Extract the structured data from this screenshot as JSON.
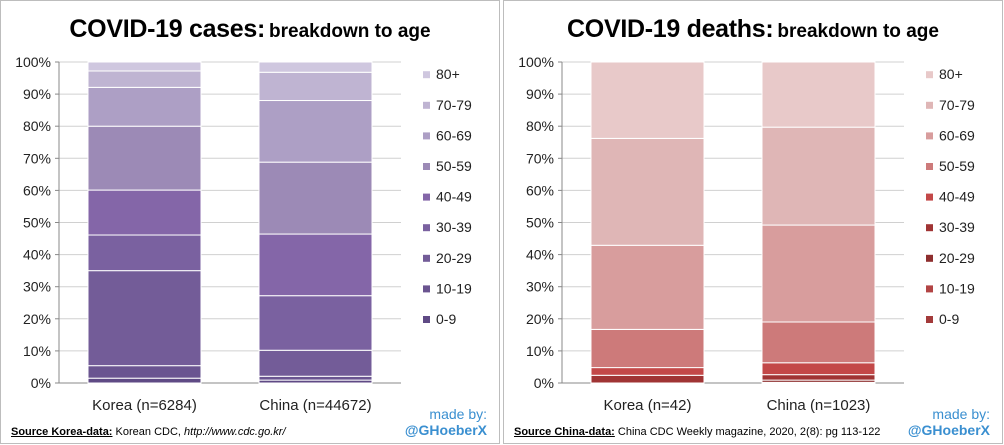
{
  "charts": [
    {
      "title_main": "COVID-19 cases:",
      "title_sub": "breakdown  to age",
      "source_label": "Source Korea-data:",
      "source_text": " Korean CDC, ",
      "source_url": "http://www.cdc.go.kr/",
      "madeby": "made by:",
      "handle": "@GHoeberX"
    },
    {
      "title_main": "COVID-19 deaths:",
      "title_sub": "breakdown  to age",
      "source_label": "Source China-data:",
      "source_text": " China CDC Weekly magazine, 2020, 2(8): pg 113-122",
      "source_url": "",
      "madeby": "made by:",
      "handle": "@GHoeberX"
    }
  ],
  "chart_data": [
    {
      "type": "bar",
      "stacked": true,
      "percent": true,
      "categories": [
        "Korea (n=6284)",
        "China (n=44672)"
      ],
      "ylim": [
        0,
        100
      ],
      "yticks": [
        "0%",
        "10%",
        "20%",
        "30%",
        "40%",
        "50%",
        "60%",
        "70%",
        "80%",
        "90%",
        "100%"
      ],
      "grid": true,
      "legend_position": "right",
      "series": [
        {
          "name": "0-9",
          "values": [
            1.5,
            0.9
          ],
          "color": "#5f4a85"
        },
        {
          "name": "10-19",
          "values": [
            3.9,
            1.2
          ],
          "color": "#6a5490"
        },
        {
          "name": "20-29",
          "values": [
            29.6,
            8.1
          ],
          "color": "#735c98"
        },
        {
          "name": "30-39",
          "values": [
            11.1,
            17.0
          ],
          "color": "#7a61a0"
        },
        {
          "name": "40-49",
          "values": [
            14.0,
            19.2
          ],
          "color": "#8466a8"
        },
        {
          "name": "50-59",
          "values": [
            19.9,
            22.4
          ],
          "color": "#9c8ab6"
        },
        {
          "name": "60-69",
          "values": [
            12.1,
            19.2
          ],
          "color": "#ad9fc5"
        },
        {
          "name": "70-79",
          "values": [
            5.1,
            8.8
          ],
          "color": "#bfb4d2"
        },
        {
          "name": "80+",
          "values": [
            2.8,
            3.2
          ],
          "color": "#cfc7df"
        }
      ]
    },
    {
      "type": "bar",
      "stacked": true,
      "percent": true,
      "categories": [
        "Korea (n=42)",
        "China (n=1023)"
      ],
      "ylim": [
        0,
        100
      ],
      "yticks": [
        "0%",
        "10%",
        "20%",
        "30%",
        "40%",
        "50%",
        "60%",
        "70%",
        "80%",
        "90%",
        "100%"
      ],
      "grid": true,
      "legend_position": "right",
      "series": [
        {
          "name": "0-9",
          "values": [
            0,
            0.1
          ],
          "color": "#a33a3a"
        },
        {
          "name": "10-19",
          "values": [
            0,
            0.1
          ],
          "color": "#b24444"
        },
        {
          "name": "20-29",
          "values": [
            0,
            0.7
          ],
          "color": "#8e2e2e"
        },
        {
          "name": "30-39",
          "values": [
            2.4,
            1.7
          ],
          "color": "#a03434"
        },
        {
          "name": "40-49",
          "values": [
            2.4,
            3.7
          ],
          "color": "#c34848"
        },
        {
          "name": "50-59",
          "values": [
            11.9,
            12.7
          ],
          "color": "#cd7a7a"
        },
        {
          "name": "60-69",
          "values": [
            26.2,
            30.2
          ],
          "color": "#d89d9d"
        },
        {
          "name": "70-79",
          "values": [
            33.3,
            30.5
          ],
          "color": "#dfb6b6"
        },
        {
          "name": "80+",
          "values": [
            23.8,
            20.3
          ],
          "color": "#e8c9c9"
        }
      ]
    }
  ]
}
